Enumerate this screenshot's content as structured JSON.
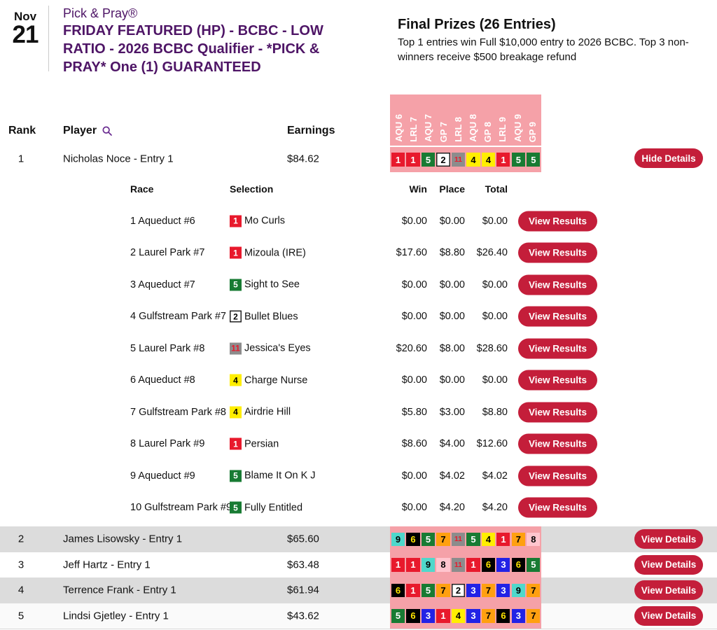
{
  "header": {
    "date_month": "Nov",
    "date_day": "21",
    "contest_type": "Pick & Pray®",
    "title_lines": [
      "FRIDAY FEATURED (HP) - BCBC - LOW",
      "RATIO - 2026 BCBC Qualifier - *PICK &",
      "PRAY* One (1) GUARANTEED"
    ],
    "prizes_title": "Final Prizes (26 Entries)",
    "prizes_description": "Top 1 entries win Full $10,000 entry to 2026 BCBC. Top 3 non-winners receive $500 breakage refund"
  },
  "colors": {
    "accent_purple": "#4E1566",
    "button_crimson": "#C41E3A",
    "panel_pink": "#F5A1A8",
    "row_alt_gray": "#DCDCDC"
  },
  "leaderboard": {
    "columns": {
      "rank": "Rank",
      "player": "Player",
      "earnings": "Earnings"
    },
    "search_icon": "search-icon",
    "track_headers": [
      "AQU 6",
      "LRL 7",
      "AQU 7",
      "GP 7",
      "LRL 8",
      "AQU 8",
      "GP 8",
      "LRL 9",
      "AQU 9",
      "GP 9"
    ],
    "saddle_colors": {
      "1": {
        "bg": "#E8192C",
        "fg": "#FFFFFF"
      },
      "2": {
        "bg": "#FFFFFF",
        "fg": "#000000",
        "border": "#222222"
      },
      "3": {
        "bg": "#2222E6",
        "fg": "#FFFFFF"
      },
      "4": {
        "bg": "#FFEE00",
        "fg": "#000000"
      },
      "5": {
        "bg": "#187B33",
        "fg": "#FFFFFF"
      },
      "6": {
        "bg": "#000000",
        "fg": "#FFE600"
      },
      "7": {
        "bg": "#FFA010",
        "fg": "#000000"
      },
      "8": {
        "bg": "#FFC5CE",
        "fg": "#000000"
      },
      "9": {
        "bg": "#4FD8CB",
        "fg": "#000000"
      },
      "11": {
        "bg": "#8C8C8C",
        "fg": "#E8192C"
      }
    },
    "entries": [
      {
        "rank": "1",
        "player": "Nicholas Noce - Entry 1",
        "earnings": "$84.62",
        "picks": [
          "1",
          "1",
          "5",
          "2",
          "11",
          "4",
          "4",
          "1",
          "5",
          "5"
        ],
        "button": "Hide Details"
      },
      {
        "rank": "2",
        "player": "James Lisowsky - Entry 1",
        "earnings": "$65.60",
        "picks": [
          "9",
          "6",
          "5",
          "7",
          "11",
          "5",
          "4",
          "1",
          "7",
          "8"
        ],
        "button": "View Details"
      },
      {
        "rank": "3",
        "player": "Jeff Hartz - Entry 1",
        "earnings": "$63.48",
        "picks": [
          "1",
          "1",
          "9",
          "8",
          "11",
          "1",
          "6",
          "3",
          "6",
          "5"
        ],
        "button": "View Details"
      },
      {
        "rank": "4",
        "player": "Terrence Frank - Entry 1",
        "earnings": "$61.94",
        "picks": [
          "6",
          "1",
          "5",
          "7",
          "2",
          "3",
          "7",
          "3",
          "9",
          "7"
        ],
        "button": "View Details"
      },
      {
        "rank": "5",
        "player": "Lindsi Gjetley - Entry 1",
        "earnings": "$43.62",
        "picks": [
          "5",
          "6",
          "3",
          "1",
          "4",
          "3",
          "7",
          "6",
          "3",
          "7"
        ],
        "button": "View Details"
      }
    ]
  },
  "details": {
    "columns": {
      "race": "Race",
      "selection": "Selection",
      "win": "Win",
      "place": "Place",
      "total": "Total"
    },
    "button": "View Results",
    "rows": [
      {
        "race": "1 Aqueduct #6",
        "pick": "1",
        "horse": "Mo Curls",
        "win": "$0.00",
        "place": "$0.00",
        "total": "$0.00"
      },
      {
        "race": "2 Laurel Park #7",
        "pick": "1",
        "horse": "Mizoula (IRE)",
        "win": "$17.60",
        "place": "$8.80",
        "total": "$26.40"
      },
      {
        "race": "3 Aqueduct #7",
        "pick": "5",
        "horse": "Sight to See",
        "win": "$0.00",
        "place": "$0.00",
        "total": "$0.00"
      },
      {
        "race": "4 Gulfstream Park #7",
        "pick": "2",
        "horse": "Bullet Blues",
        "win": "$0.00",
        "place": "$0.00",
        "total": "$0.00"
      },
      {
        "race": "5 Laurel Park #8",
        "pick": "11",
        "horse": "Jessica's Eyes",
        "win": "$20.60",
        "place": "$8.00",
        "total": "$28.60"
      },
      {
        "race": "6 Aqueduct #8",
        "pick": "4",
        "horse": "Charge Nurse",
        "win": "$0.00",
        "place": "$0.00",
        "total": "$0.00"
      },
      {
        "race": "7 Gulfstream Park #8",
        "pick": "4",
        "horse": "Airdrie Hill",
        "win": "$5.80",
        "place": "$3.00",
        "total": "$8.80"
      },
      {
        "race": "8 Laurel Park #9",
        "pick": "1",
        "horse": "Persian",
        "win": "$8.60",
        "place": "$4.00",
        "total": "$12.60"
      },
      {
        "race": "9 Aqueduct #9",
        "pick": "5",
        "horse": "Blame It On K J",
        "win": "$0.00",
        "place": "$4.02",
        "total": "$4.02"
      },
      {
        "race": "10 Gulfstream Park #9",
        "pick": "5",
        "horse": "Fully Entitled",
        "win": "$0.00",
        "place": "$4.20",
        "total": "$4.20"
      }
    ]
  }
}
